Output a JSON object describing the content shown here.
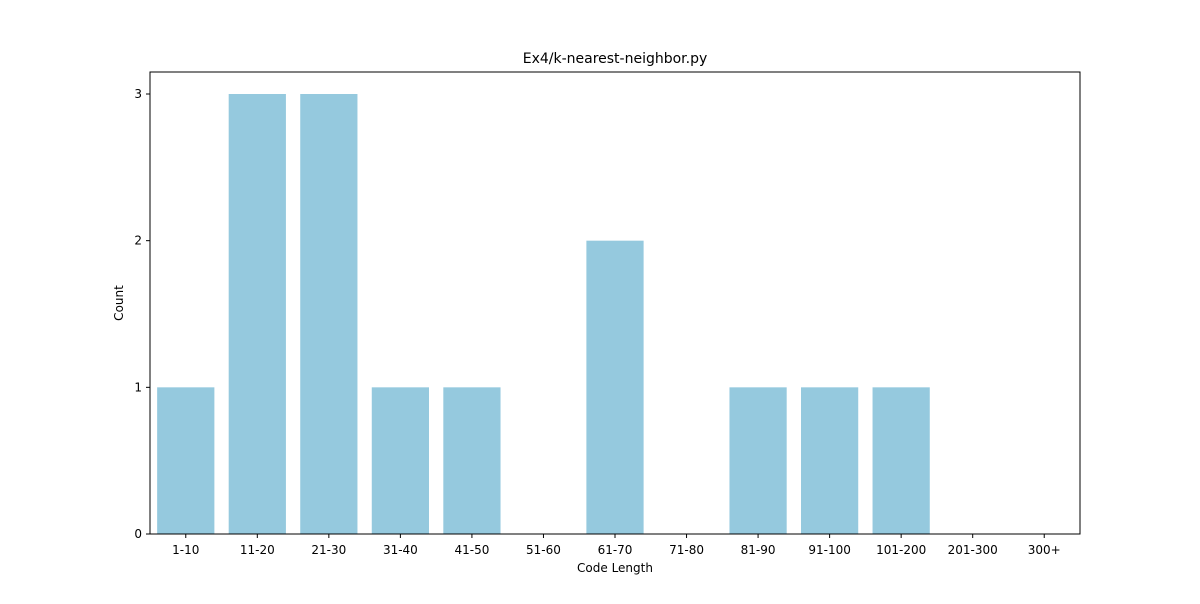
{
  "chart_data": {
    "type": "bar",
    "title": "Ex4/k-nearest-neighbor.py",
    "xlabel": "Code Length",
    "ylabel": "Count",
    "categories": [
      "1-10",
      "11-20",
      "21-30",
      "31-40",
      "41-50",
      "51-60",
      "61-70",
      "71-80",
      "81-90",
      "91-100",
      "101-200",
      "201-300",
      "300+"
    ],
    "values": [
      1,
      3,
      3,
      1,
      1,
      0,
      2,
      0,
      1,
      1,
      1,
      0,
      0
    ],
    "ylim": [
      0,
      3.15
    ],
    "yticks": [
      "0",
      "1",
      "2",
      "3"
    ],
    "grid": false,
    "bar_color": "#95c9de"
  }
}
